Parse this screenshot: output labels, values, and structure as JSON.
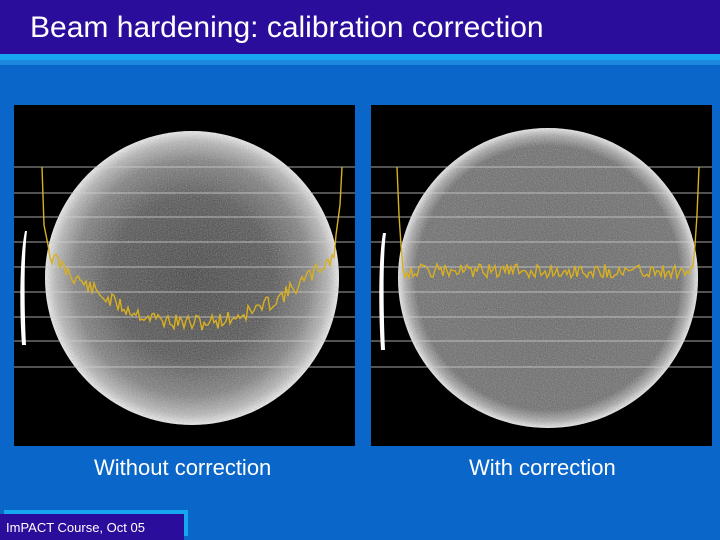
{
  "slide": {
    "title": "Beam hardening: calibration correction",
    "footer": "ImPACT Course, Oct 05"
  },
  "panels": [
    {
      "caption": "Without correction",
      "profile": "cupped"
    },
    {
      "caption": "With correction",
      "profile": "flat"
    }
  ],
  "colors": {
    "background": "#0a66c8",
    "title_bar": "#2b0d9c",
    "accent_stripe": "#17a7f0",
    "profile_line": "#d8b020",
    "grid_line": "#cfcfcf"
  }
}
